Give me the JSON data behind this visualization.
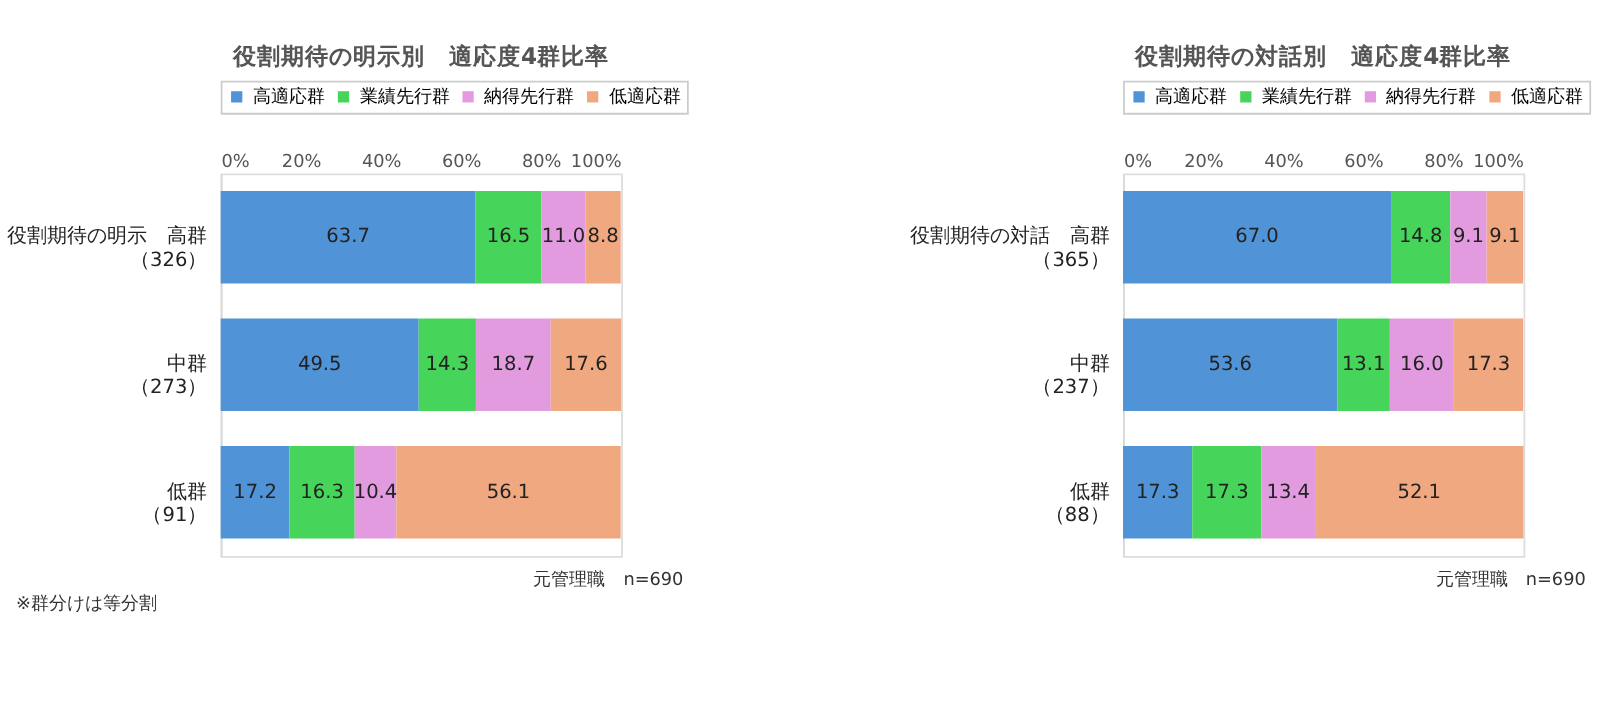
{
  "chart_data": [
    {
      "type": "bar",
      "orientation": "horizontal",
      "stacked": true,
      "title": "役割期待の明示別　適応度4群比率",
      "categories": [
        "役割期待の明示　高群（326）",
        "中群（273）",
        "低群（91）"
      ],
      "series": [
        {
          "name": "高適応群",
          "color": "#5093d6",
          "values": [
            63.7,
            49.5,
            17.2
          ],
          "value_labels": [
            "63.7",
            "49.5",
            "17.2"
          ]
        },
        {
          "name": "業績先行群",
          "color": "#47d45a",
          "values": [
            16.5,
            14.3,
            16.3
          ],
          "value_labels": [
            "16.5",
            "14.3",
            "16.3"
          ]
        },
        {
          "name": "納得先行群",
          "color": "#e39be0",
          "values": [
            11.0,
            18.7,
            10.4
          ],
          "value_labels": [
            "11.0",
            "18.7",
            "10.4"
          ]
        },
        {
          "name": "低適応群",
          "color": "#f0a880",
          "values": [
            8.8,
            17.6,
            56.1
          ],
          "value_labels": [
            "8.8",
            "17.6",
            "56.1"
          ]
        }
      ],
      "xlim": [
        0,
        100.1
      ],
      "xticks": [
        {
          "value": 0,
          "label": "0%"
        },
        {
          "value": 20,
          "label": "20%"
        },
        {
          "value": 40,
          "label": "40%"
        },
        {
          "value": 60,
          "label": "60%"
        },
        {
          "value": 80,
          "label": "80%"
        },
        {
          "value": 100,
          "label": "100%"
        }
      ],
      "legend": "top",
      "grid": false,
      "annotations": [
        "元管理職　n=690",
        "※群分けは等分割"
      ]
    },
    {
      "type": "bar",
      "orientation": "horizontal",
      "stacked": true,
      "title": "役割期待の対話別　適応度4群比率",
      "categories": [
        "役割期待の対話　高群（365）",
        "中群（237）",
        "低群（88）"
      ],
      "series": [
        {
          "name": "高適応群",
          "color": "#5093d6",
          "values": [
            67.0,
            53.6,
            17.3
          ],
          "value_labels": [
            "67.0",
            "53.6",
            "17.3"
          ]
        },
        {
          "name": "業績先行群",
          "color": "#47d45a",
          "values": [
            14.8,
            13.1,
            17.3
          ],
          "value_labels": [
            "14.8",
            "13.1",
            "17.3"
          ]
        },
        {
          "name": "納得先行群",
          "color": "#e39be0",
          "values": [
            9.1,
            16.0,
            13.4
          ],
          "value_labels": [
            "9.1",
            "16.0",
            "13.4"
          ]
        },
        {
          "name": "低適応群",
          "color": "#f0a880",
          "values": [
            9.1,
            17.3,
            52.1
          ],
          "value_labels": [
            "9.1",
            "17.3",
            "52.1"
          ]
        }
      ],
      "xlim": [
        0,
        100.1
      ],
      "xticks": [
        {
          "value": 0,
          "label": "0%"
        },
        {
          "value": 20,
          "label": "20%"
        },
        {
          "value": 40,
          "label": "40%"
        },
        {
          "value": 60,
          "label": "60%"
        },
        {
          "value": 80,
          "label": "80%"
        },
        {
          "value": 100,
          "label": "100%"
        }
      ],
      "legend": "top",
      "grid": false,
      "annotations": [
        "元管理職　n=690"
      ]
    }
  ]
}
